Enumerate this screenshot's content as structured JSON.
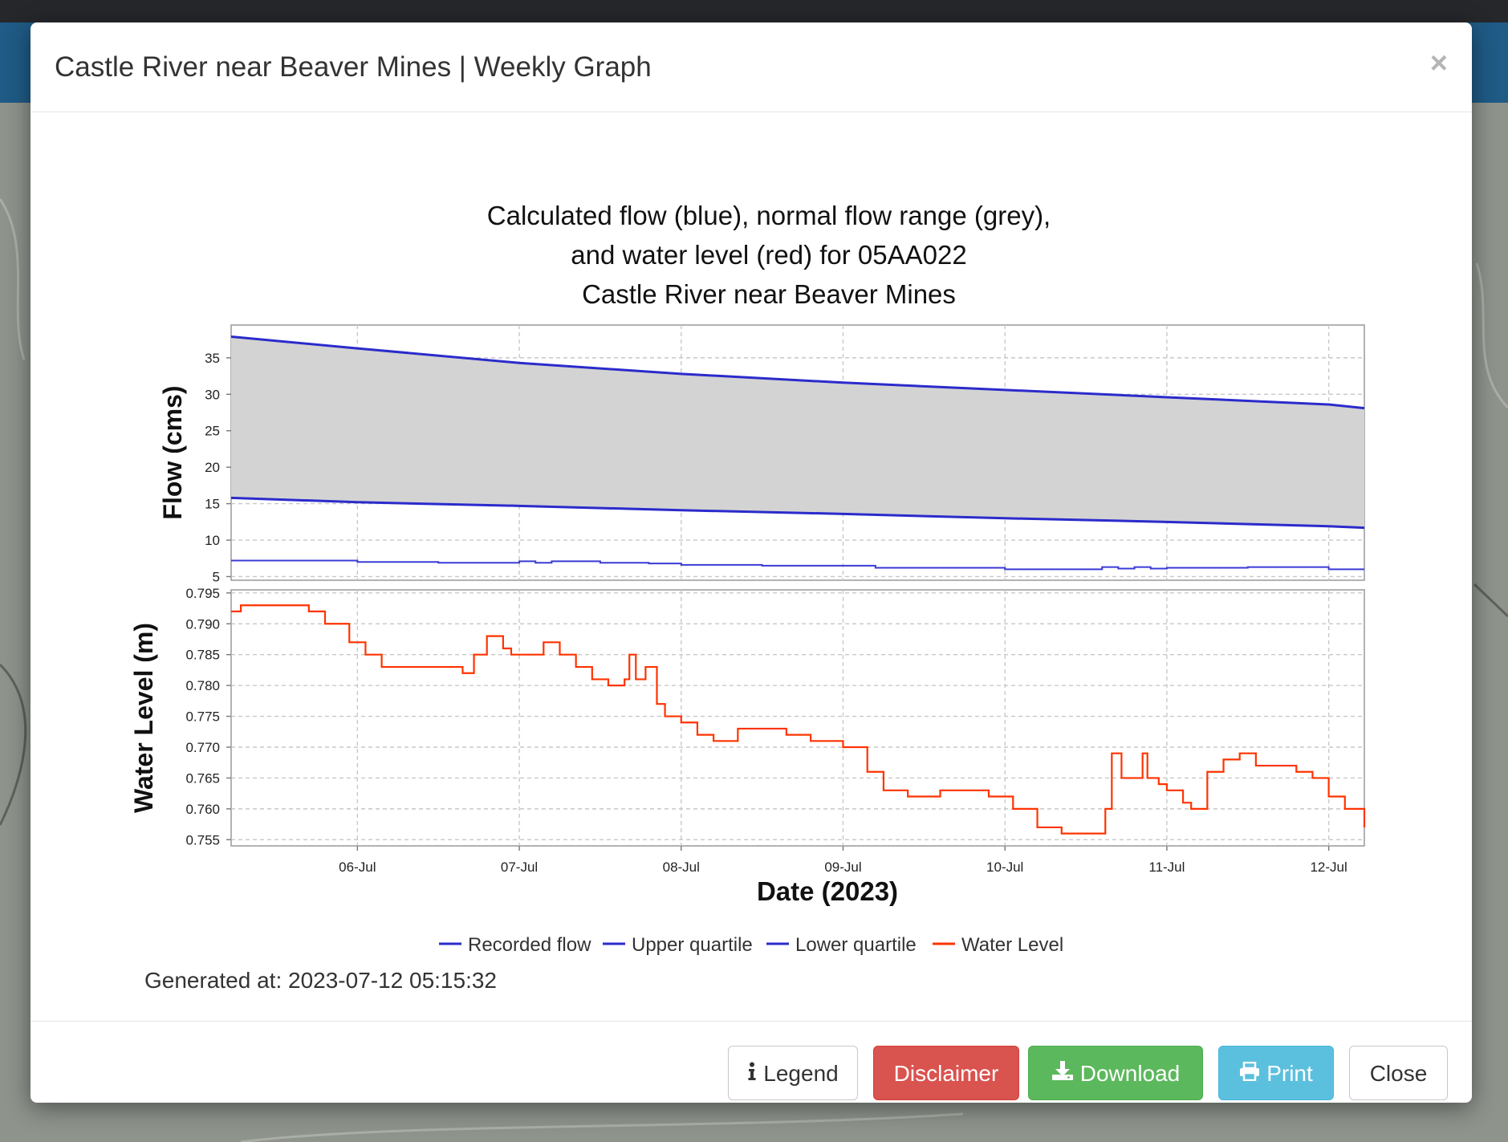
{
  "modal": {
    "title": "Castle River near Beaver Mines | Weekly Graph",
    "close_symbol": "×"
  },
  "footer": {
    "legend_label": "Legend",
    "disclaimer_label": "Disclaimer",
    "download_label": "Download",
    "print_label": "Print",
    "close_label": "Close"
  },
  "generated_text": "Generated at: 2023-07-12 05:15:32",
  "colors": {
    "flow": "#2b2bcc",
    "range_fill": "#d3d3d3",
    "water_level": "#ff3300",
    "disclaimer": "#d9534f",
    "download": "#5cb85c",
    "print": "#5bc0de"
  },
  "icons": {
    "legend": "info-icon",
    "download": "download-icon",
    "print": "print-icon",
    "close": "close-icon"
  },
  "chart_data": {
    "type": "line",
    "title": [
      "Calculated flow (blue), normal flow range (grey),",
      "and water level (red) for 05AA022",
      "Castle River near Beaver Mines"
    ],
    "xlabel": "Date (2023)",
    "x_ticks": [
      "06-Jul",
      "07-Jul",
      "08-Jul",
      "09-Jul",
      "10-Jul",
      "11-Jul",
      "12-Jul"
    ],
    "xlim_days": [
      5.22,
      12.22
    ],
    "legend": [
      "Recorded flow",
      "Upper quartile",
      "Lower quartile",
      "Water Level"
    ],
    "legend_position": "bottom",
    "grid": true,
    "panels": [
      {
        "ylabel": "Flow (cms)",
        "ylim": [
          4.5,
          39.5
        ],
        "y_ticks": [
          5,
          10,
          15,
          20,
          25,
          30,
          35
        ],
        "series": [
          {
            "name": "Upper quartile",
            "x": [
              5.22,
              6.0,
              7.0,
              8.0,
              9.0,
              10.0,
              11.0,
              12.0,
              12.22
            ],
            "y": [
              37.9,
              36.3,
              34.3,
              32.8,
              31.6,
              30.6,
              29.6,
              28.6,
              28.1
            ]
          },
          {
            "name": "Lower quartile",
            "x": [
              5.22,
              6.0,
              7.0,
              8.0,
              9.0,
              10.0,
              11.0,
              12.0,
              12.22
            ],
            "y": [
              15.8,
              15.2,
              14.7,
              14.1,
              13.6,
              13.0,
              12.5,
              11.9,
              11.7
            ]
          },
          {
            "name": "Recorded flow",
            "x": [
              5.22,
              5.7,
              6.0,
              6.5,
              6.9,
              7.0,
              7.1,
              7.2,
              7.5,
              7.8,
              8.0,
              8.5,
              9.0,
              9.2,
              9.5,
              10.0,
              10.5,
              10.6,
              10.7,
              10.8,
              10.9,
              11.0,
              11.2,
              11.5,
              11.8,
              12.0,
              12.22
            ],
            "y": [
              7.2,
              7.2,
              7.0,
              6.9,
              6.9,
              7.1,
              6.9,
              7.1,
              6.9,
              6.8,
              6.6,
              6.5,
              6.5,
              6.2,
              6.2,
              6.0,
              6.0,
              6.3,
              6.1,
              6.3,
              6.1,
              6.2,
              6.2,
              6.3,
              6.3,
              6.0,
              6.0
            ]
          }
        ]
      },
      {
        "ylabel": "Water Level (m)",
        "ylim": [
          0.754,
          0.7955
        ],
        "y_ticks": [
          "0.755",
          "0.760",
          "0.765",
          "0.770",
          "0.775",
          "0.780",
          "0.785",
          "0.790",
          "0.795"
        ],
        "series": [
          {
            "name": "Water Level",
            "x": [
              5.22,
              5.28,
              5.4,
              5.55,
              5.7,
              5.8,
              5.95,
              6.05,
              6.15,
              6.3,
              6.5,
              6.65,
              6.72,
              6.8,
              6.9,
              6.95,
              7.05,
              7.15,
              7.25,
              7.35,
              7.45,
              7.55,
              7.65,
              7.68,
              7.72,
              7.78,
              7.85,
              7.9,
              8.0,
              8.1,
              8.2,
              8.35,
              8.5,
              8.65,
              8.8,
              9.0,
              9.15,
              9.25,
              9.4,
              9.6,
              9.75,
              9.9,
              10.05,
              10.2,
              10.35,
              10.45,
              10.58,
              10.62,
              10.66,
              10.72,
              10.8,
              10.85,
              10.88,
              10.95,
              11.0,
              11.1,
              11.15,
              11.25,
              11.35,
              11.45,
              11.55,
              11.7,
              11.8,
              11.9,
              12.0,
              12.1,
              12.22
            ],
            "y": [
              0.792,
              0.793,
              0.793,
              0.793,
              0.792,
              0.79,
              0.787,
              0.785,
              0.783,
              0.783,
              0.783,
              0.782,
              0.785,
              0.788,
              0.786,
              0.785,
              0.785,
              0.787,
              0.785,
              0.783,
              0.781,
              0.78,
              0.781,
              0.785,
              0.781,
              0.783,
              0.777,
              0.775,
              0.774,
              0.772,
              0.771,
              0.773,
              0.773,
              0.772,
              0.771,
              0.77,
              0.766,
              0.763,
              0.762,
              0.763,
              0.763,
              0.762,
              0.76,
              0.757,
              0.756,
              0.756,
              0.756,
              0.76,
              0.769,
              0.765,
              0.765,
              0.769,
              0.765,
              0.764,
              0.763,
              0.761,
              0.76,
              0.766,
              0.768,
              0.769,
              0.767,
              0.767,
              0.766,
              0.765,
              0.762,
              0.76,
              0.757
            ]
          }
        ]
      }
    ]
  }
}
